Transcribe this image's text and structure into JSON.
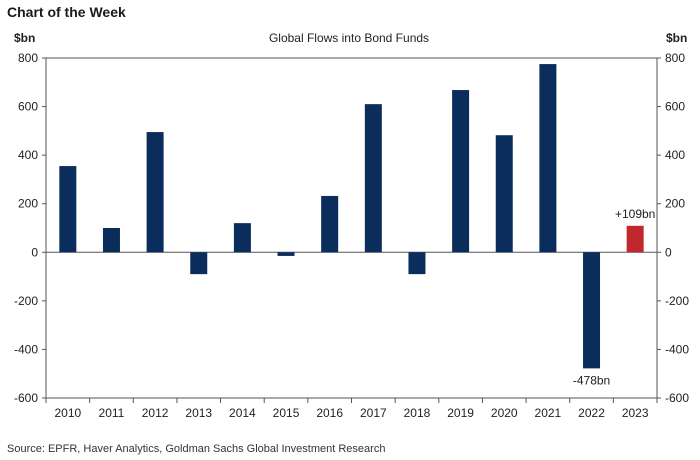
{
  "header": {
    "title": "Chart of the Week"
  },
  "source": "Source: EPFR, Haver Analytics, Goldman Sachs Global Investment Research",
  "colors": {
    "bar": "#0b2d5c",
    "highlight_bar": "#c0282d",
    "axis": "#555555",
    "text": "#222222"
  },
  "chart_data": {
    "type": "bar",
    "title": "Global Flows into Bond Funds",
    "ylabel_left": "$bn",
    "ylabel_right": "$bn",
    "xlabel": "",
    "categories": [
      "2010",
      "2011",
      "2012",
      "2013",
      "2014",
      "2015",
      "2016",
      "2017",
      "2018",
      "2019",
      "2020",
      "2021",
      "2022",
      "2023"
    ],
    "series": [
      {
        "values": [
          355,
          100,
          495,
          -90,
          120,
          -15,
          232,
          610,
          -90,
          668,
          482,
          775,
          -478,
          109
        ]
      }
    ],
    "highlight_index": 13,
    "ylim": [
      -600,
      800
    ],
    "yticks": [
      800,
      600,
      400,
      200,
      0,
      -200,
      -400,
      -600
    ],
    "annotations": [
      {
        "category": "2022",
        "text": "-478bn"
      },
      {
        "category": "2023",
        "text": "+109bn"
      }
    ],
    "grid": false,
    "legend": "none"
  }
}
